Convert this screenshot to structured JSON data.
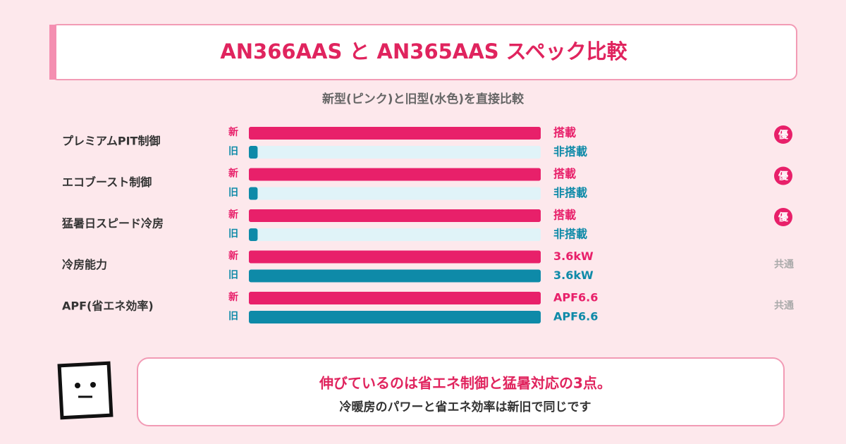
{
  "chart_data": {
    "type": "bar",
    "title": "AN366AAS と AN365AAS スペック比較",
    "subtitle": "新型(ピンク)と旧型(水色)を直接比較",
    "categories": [
      "プレミアムPIT制御",
      "エコブースト制御",
      "猛暑日スピード冷房",
      "冷房能力",
      "APF(省エネ効率)"
    ],
    "xlim": [
      0,
      100
    ],
    "series": [
      {
        "name": "新",
        "color": "#e8206a",
        "values": [
          100,
          100,
          100,
          100,
          100
        ],
        "status": [
          "搭載",
          "搭載",
          "搭載",
          "3.6kW",
          "APF6.6"
        ]
      },
      {
        "name": "旧",
        "color": "#0e8aa8",
        "values": [
          3,
          3,
          3,
          100,
          100
        ],
        "status": [
          "非搭載",
          "非搭載",
          "非搭載",
          "3.6kW",
          "APF6.6"
        ]
      }
    ],
    "verdicts": [
      "優",
      "優",
      "優",
      "共通",
      "共通"
    ],
    "footer": {
      "headline": "伸びているのは省エネ制御と猛暑対応の3点。",
      "note": "冷暖房のパワーと省エネ効率は新旧で同じです"
    }
  }
}
